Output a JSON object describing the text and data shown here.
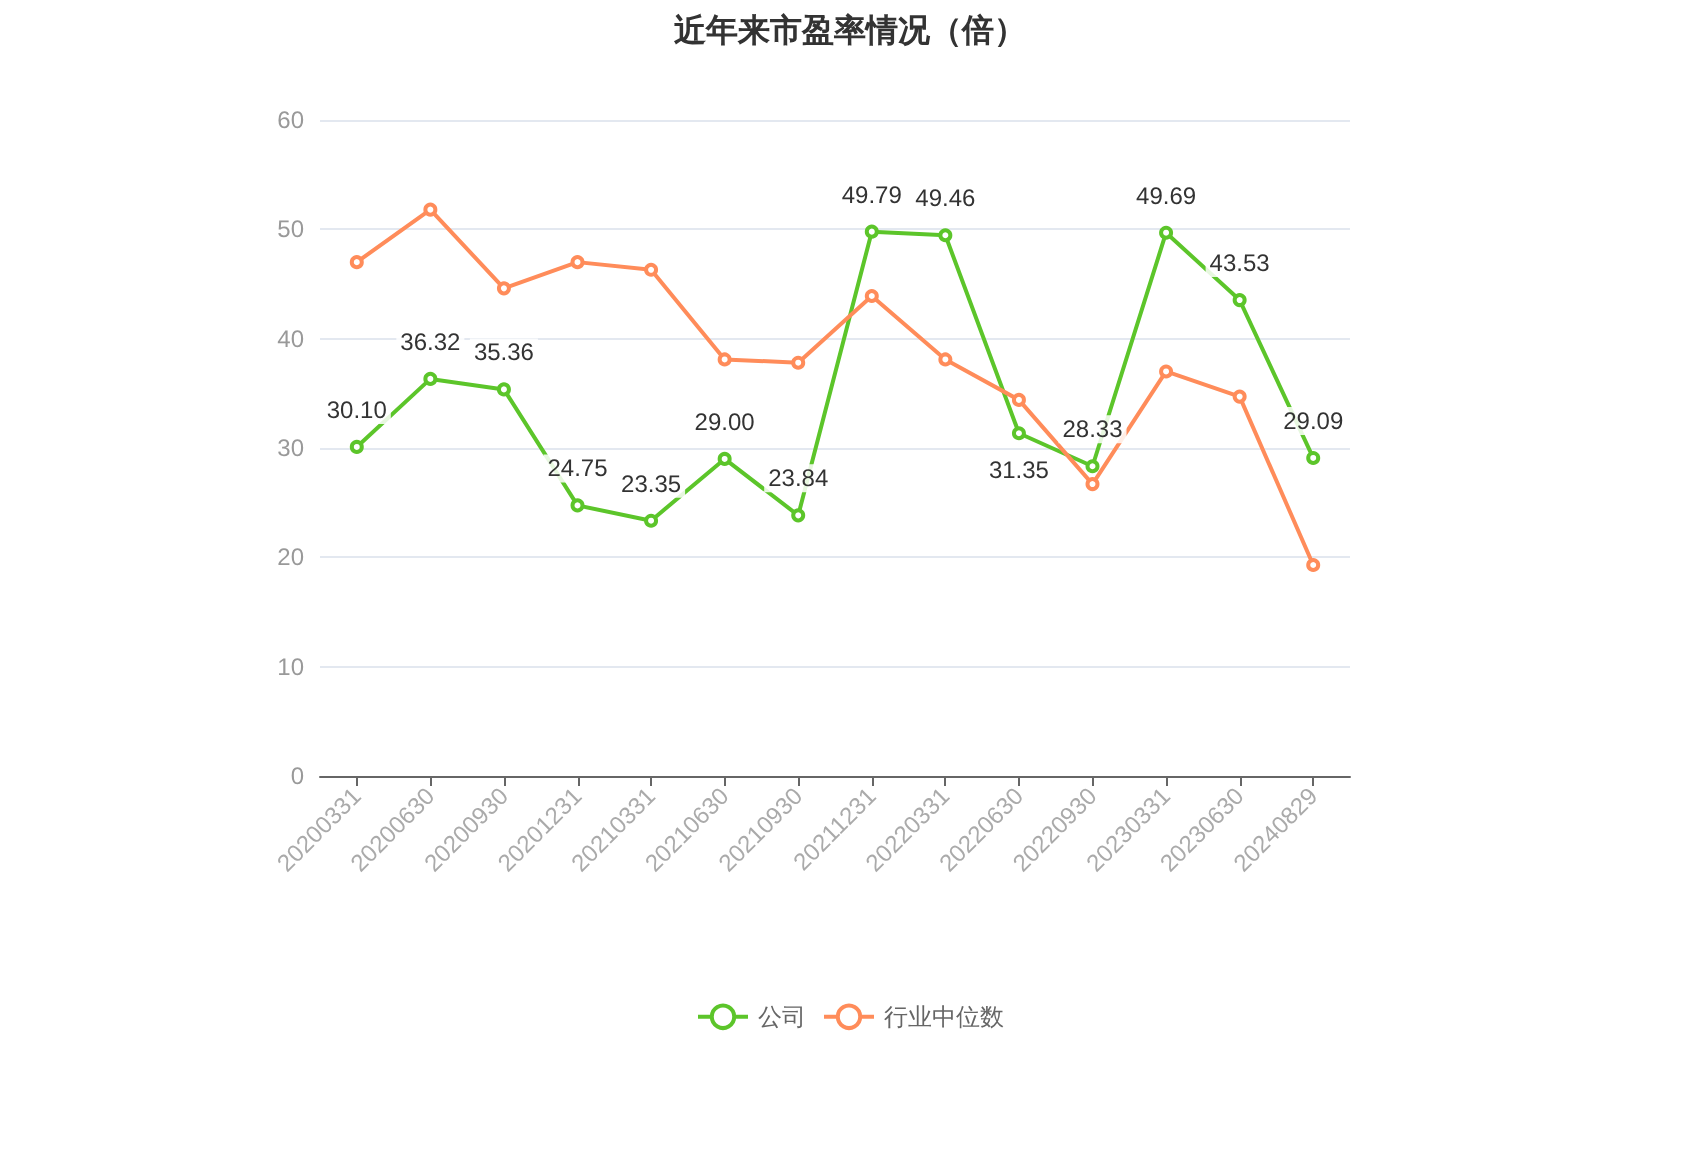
{
  "chart_data": {
    "type": "line",
    "title": "近年来市盈率情况（倍）",
    "categories": [
      "20200331",
      "20200630",
      "20200930",
      "20201231",
      "20210331",
      "20210630",
      "20210930",
      "20211231",
      "20220331",
      "20220630",
      "20220930",
      "20230331",
      "20230630",
      "20240829"
    ],
    "series": [
      {
        "name": "公司",
        "color": "#5cc52a",
        "values": [
          30.1,
          36.32,
          35.36,
          24.75,
          23.35,
          29.0,
          23.84,
          49.79,
          49.46,
          31.35,
          28.33,
          49.69,
          43.53,
          29.09
        ],
        "value_labels": [
          "30.10",
          "36.32",
          "35.36",
          "24.75",
          "23.35",
          "29.00",
          "23.84",
          "49.79",
          "49.46",
          "31.35",
          "28.33",
          "49.69",
          "43.53",
          "29.09"
        ]
      },
      {
        "name": "行业中位数",
        "color": "#ff8c5a",
        "values": [
          47.0,
          51.8,
          44.6,
          47.0,
          46.3,
          38.1,
          37.8,
          43.9,
          38.1,
          34.4,
          26.7,
          37.0,
          34.7,
          19.3
        ]
      }
    ],
    "ylim": [
      0,
      60
    ],
    "yticks": [
      0,
      10,
      20,
      30,
      40,
      50,
      60
    ],
    "grid": "y",
    "legend": "bottom",
    "marker": "circle",
    "line_style": "solid"
  }
}
